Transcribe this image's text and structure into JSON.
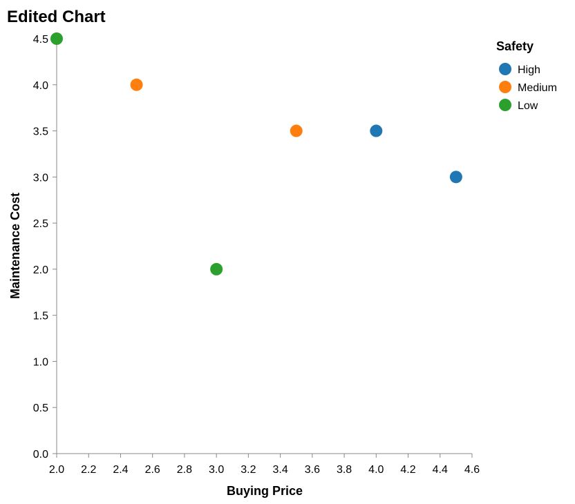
{
  "chart_data": {
    "type": "scatter",
    "title": "Edited Chart",
    "xlabel": "Buying Price",
    "ylabel": "Maintenance Cost",
    "xlim": [
      2.0,
      4.6
    ],
    "ylim": [
      0.0,
      4.5
    ],
    "x_ticks": [
      "2.0",
      "2.2",
      "2.4",
      "2.6",
      "2.8",
      "3.0",
      "3.2",
      "3.4",
      "3.6",
      "3.8",
      "4.0",
      "4.2",
      "4.4",
      "4.6"
    ],
    "y_ticks": [
      "0.0",
      "0.5",
      "1.0",
      "1.5",
      "2.0",
      "2.5",
      "3.0",
      "3.5",
      "4.0",
      "4.5"
    ],
    "grid": false,
    "legend": {
      "title": "Safety",
      "placement": "top-right",
      "entries": [
        {
          "label": "High",
          "color": "#1f77b4"
        },
        {
          "label": "Medium",
          "color": "#ff7f0e"
        },
        {
          "label": "Low",
          "color": "#2ca02c"
        }
      ]
    },
    "series": [
      {
        "name": "High",
        "color": "#1f77b4",
        "points": [
          {
            "x": 4.0,
            "y": 3.5
          },
          {
            "x": 4.5,
            "y": 3.0
          }
        ]
      },
      {
        "name": "Medium",
        "color": "#ff7f0e",
        "points": [
          {
            "x": 2.5,
            "y": 4.0
          },
          {
            "x": 3.5,
            "y": 3.5
          }
        ]
      },
      {
        "name": "Low",
        "color": "#2ca02c",
        "points": [
          {
            "x": 2.0,
            "y": 4.5
          },
          {
            "x": 3.0,
            "y": 2.0
          }
        ]
      }
    ]
  }
}
